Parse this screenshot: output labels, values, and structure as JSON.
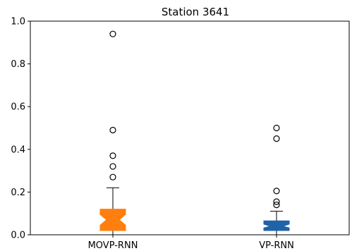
{
  "chart_data": {
    "type": "box",
    "title": "Station 3641",
    "xlabel": "",
    "ylabel": "",
    "ylim": [
      0.0,
      1.0
    ],
    "yticks": [
      0.0,
      0.2,
      0.4,
      0.6,
      0.8,
      1.0
    ],
    "ytick_labels": [
      "0.0",
      "0.2",
      "0.4",
      "0.6",
      "0.8",
      "1.0"
    ],
    "categories": [
      "MOVP-RNN",
      "VP-RNN"
    ],
    "boxes": [
      {
        "label": "MOVP-RNN",
        "color": "#ff7f0e",
        "whislo": 0.0,
        "q1": 0.02,
        "median": 0.07,
        "q3": 0.12,
        "whishi": 0.22,
        "notch_lo": 0.045,
        "notch_hi": 0.095,
        "fliers": [
          0.27,
          0.32,
          0.37,
          0.49,
          0.94
        ]
      },
      {
        "label": "VP-RNN",
        "color": "#1f63a8",
        "whislo": 0.0,
        "q1": 0.02,
        "median": 0.04,
        "q3": 0.065,
        "whishi": 0.11,
        "notch_lo": 0.032,
        "notch_hi": 0.05,
        "fliers": [
          0.14,
          0.155,
          0.205,
          0.45,
          0.5
        ]
      }
    ],
    "grid": false
  }
}
